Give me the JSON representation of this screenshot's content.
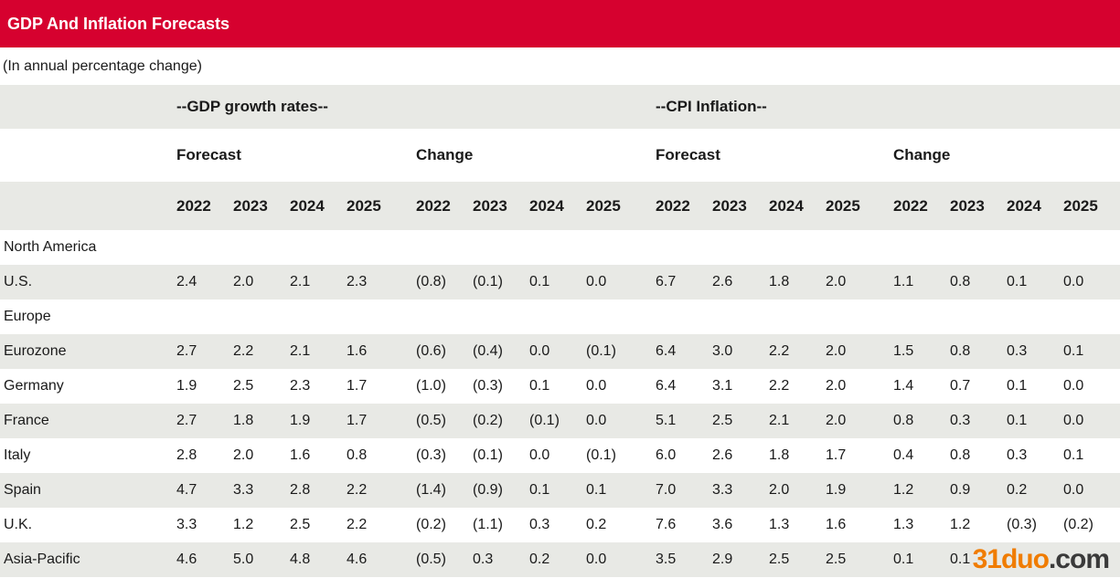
{
  "title": "GDP And Inflation Forecasts",
  "subtitle": "(In annual percentage change)",
  "colors": {
    "header_red": "#D6012F",
    "stripe_gray": "#E8E9E5",
    "text": "#1A1A1A",
    "watermark_orange": "#F07C00",
    "watermark_dark": "#3A3A3A"
  },
  "watermark": {
    "brand": "31duo",
    "tld": ".com"
  },
  "chart_data": {
    "type": "table",
    "title": "GDP And Inflation Forecasts",
    "subtitle": "(In annual percentage change)",
    "column_groups": [
      "--GDP growth rates--",
      "--CPI Inflation--"
    ],
    "subheaders": [
      "Forecast",
      "Change",
      "Forecast",
      "Change"
    ],
    "years": [
      "2022",
      "2023",
      "2024",
      "2025"
    ],
    "rows": [
      {
        "label": "North America",
        "values": null
      },
      {
        "label": "U.S.",
        "values": [
          [
            "2.4",
            "2.0",
            "2.1",
            "2.3"
          ],
          [
            "(0.8)",
            "(0.1)",
            "0.1",
            "0.0"
          ],
          [
            "6.7",
            "2.6",
            "1.8",
            "2.0"
          ],
          [
            "1.1",
            "0.8",
            "0.1",
            "0.0"
          ]
        ]
      },
      {
        "label": "Europe",
        "values": null
      },
      {
        "label": "Eurozone",
        "values": [
          [
            "2.7",
            "2.2",
            "2.1",
            "1.6"
          ],
          [
            "(0.6)",
            "(0.4)",
            "0.0",
            "(0.1)"
          ],
          [
            "6.4",
            "3.0",
            "2.2",
            "2.0"
          ],
          [
            "1.5",
            "0.8",
            "0.3",
            "0.1"
          ]
        ]
      },
      {
        "label": "Germany",
        "values": [
          [
            "1.9",
            "2.5",
            "2.3",
            "1.7"
          ],
          [
            "(1.0)",
            "(0.3)",
            "0.1",
            "0.0"
          ],
          [
            "6.4",
            "3.1",
            "2.2",
            "2.0"
          ],
          [
            "1.4",
            "0.7",
            "0.1",
            "0.0"
          ]
        ]
      },
      {
        "label": "France",
        "values": [
          [
            "2.7",
            "1.8",
            "1.9",
            "1.7"
          ],
          [
            "(0.5)",
            "(0.2)",
            "(0.1)",
            "0.0"
          ],
          [
            "5.1",
            "2.5",
            "2.1",
            "2.0"
          ],
          [
            "0.8",
            "0.3",
            "0.1",
            "0.0"
          ]
        ]
      },
      {
        "label": "Italy",
        "values": [
          [
            "2.8",
            "2.0",
            "1.6",
            "0.8"
          ],
          [
            "(0.3)",
            "(0.1)",
            "0.0",
            "(0.1)"
          ],
          [
            "6.0",
            "2.6",
            "1.8",
            "1.7"
          ],
          [
            "0.4",
            "0.8",
            "0.3",
            "0.1"
          ]
        ]
      },
      {
        "label": "Spain",
        "values": [
          [
            "4.7",
            "3.3",
            "2.8",
            "2.2"
          ],
          [
            "(1.4)",
            "(0.9)",
            "0.1",
            "0.1"
          ],
          [
            "7.0",
            "3.3",
            "2.0",
            "1.9"
          ],
          [
            "1.2",
            "0.9",
            "0.2",
            "0.0"
          ]
        ]
      },
      {
        "label": "U.K.",
        "values": [
          [
            "3.3",
            "1.2",
            "2.5",
            "2.2"
          ],
          [
            "(0.2)",
            "(1.1)",
            "0.3",
            "0.2"
          ],
          [
            "7.6",
            "3.6",
            "1.3",
            "1.6"
          ],
          [
            "1.3",
            "1.2",
            "(0.3)",
            "(0.2)"
          ]
        ]
      },
      {
        "label": "Asia-Pacific",
        "values": [
          [
            "4.6",
            "5.0",
            "4.8",
            "4.6"
          ],
          [
            "(0.5)",
            "0.3",
            "0.2",
            "0.0"
          ],
          [
            "3.5",
            "2.9",
            "2.5",
            "2.5"
          ],
          [
            "0.1",
            "0.1",
            "",
            ""
          ]
        ]
      }
    ]
  }
}
